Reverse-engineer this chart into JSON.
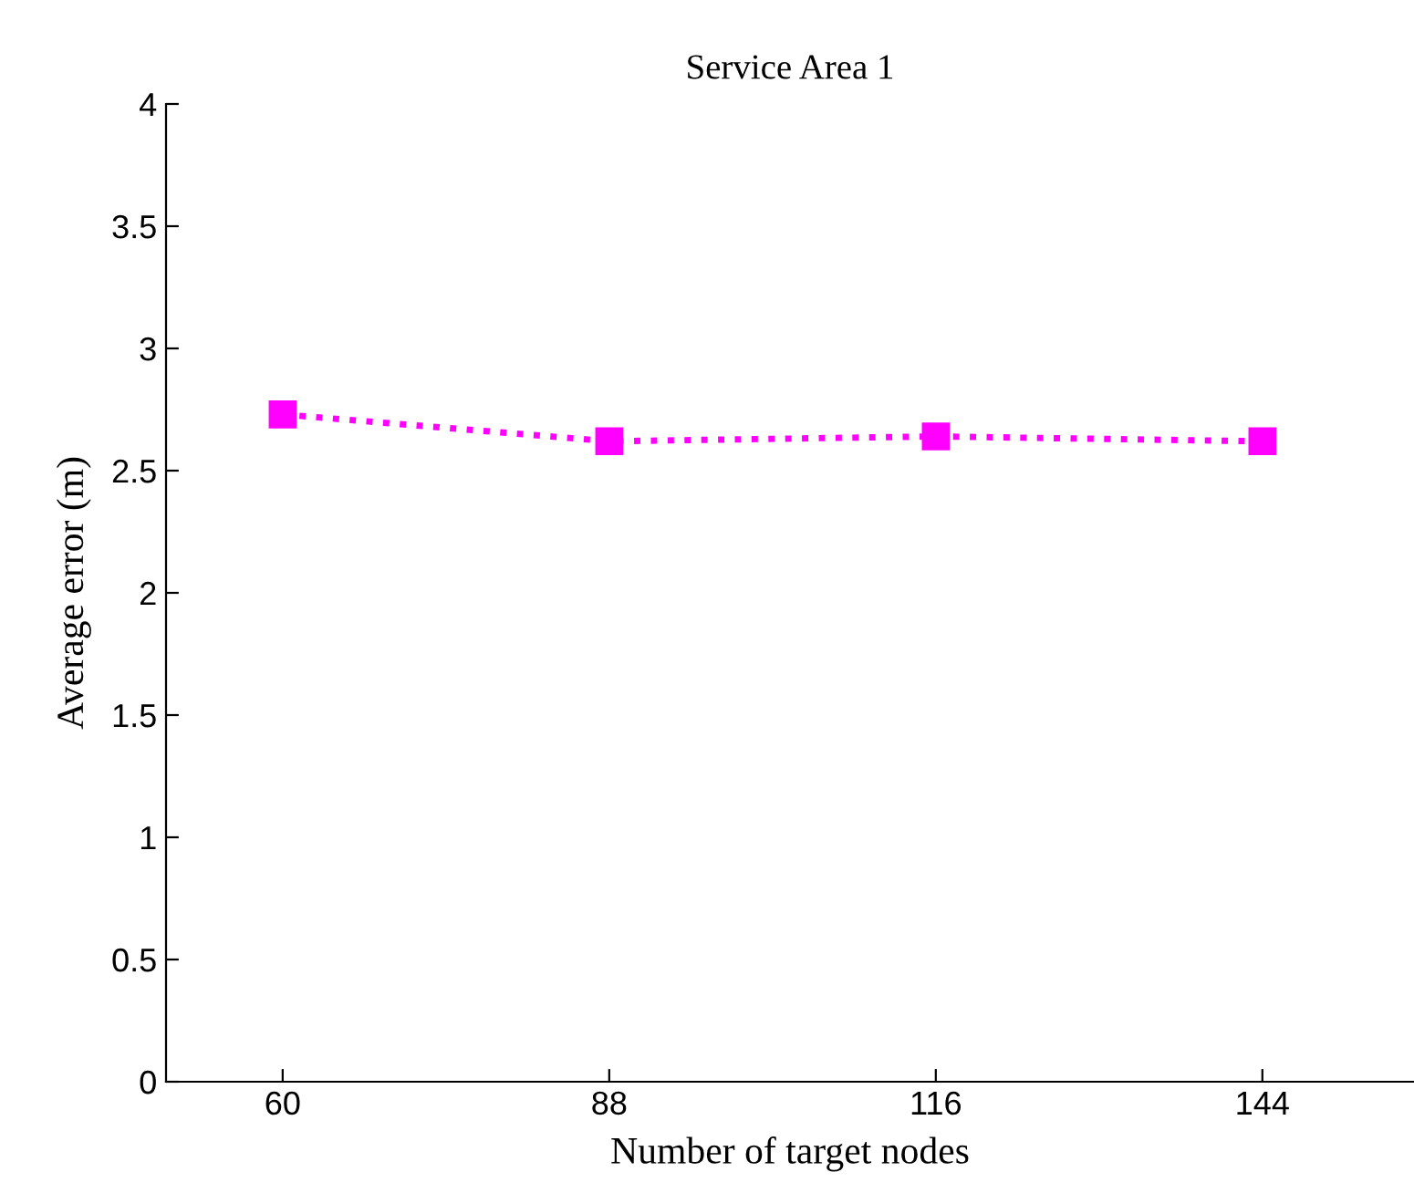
{
  "chart_data": {
    "type": "line",
    "title": "Service Area 1",
    "xlabel": "Number of target nodes",
    "ylabel": "Average error (m)",
    "x": [
      60,
      88,
      116,
      144
    ],
    "series": [
      {
        "color": "#ff00ff",
        "values": [
          2.73,
          2.62,
          2.64,
          2.62
        ]
      }
    ],
    "xlim": [
      50,
      157
    ],
    "xticks": [
      60,
      88,
      116,
      144
    ],
    "ylim": [
      0,
      4
    ],
    "yticks": [
      0,
      0.5,
      1,
      1.5,
      2,
      2.5,
      3,
      3.5,
      4
    ],
    "marker": "square",
    "line_style": "dotted",
    "grid": false,
    "legend": false
  }
}
